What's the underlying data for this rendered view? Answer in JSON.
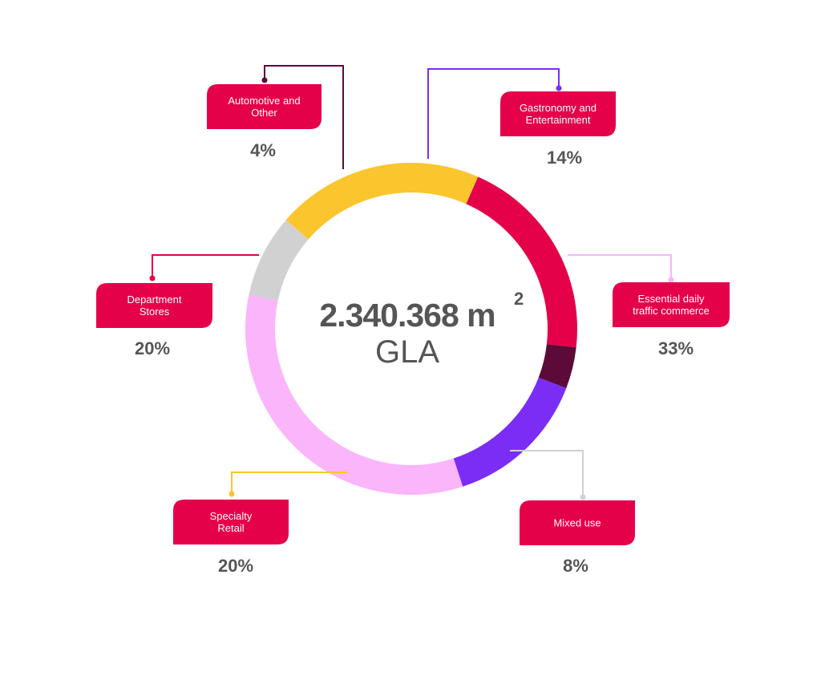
{
  "chart_data": {
    "type": "pie",
    "variant": "donut",
    "center_value": "2.340.368 m",
    "center_superscript": "2",
    "center_label": "GLA",
    "slices": [
      {
        "key": "gastronomy",
        "label_lines": [
          "Gastronomy and",
          "Entertainment"
        ],
        "value": 14,
        "display": "14%",
        "color": "#7b2cf5"
      },
      {
        "key": "essential",
        "label_lines": [
          "Essential daily",
          "traffic commerce"
        ],
        "value": 33,
        "display": "33%",
        "color": "#fab5fb"
      },
      {
        "key": "mixed",
        "label_lines": [
          "Mixed use"
        ],
        "value": 8,
        "display": "8%",
        "color": "#d1d1d1"
      },
      {
        "key": "specialty",
        "label_lines": [
          "Specialty",
          "Retail"
        ],
        "value": 20,
        "display": "20%",
        "color": "#fbc52e"
      },
      {
        "key": "department",
        "label_lines": [
          "Department",
          "Stores"
        ],
        "value": 20,
        "display": "20%",
        "color": "#e5004a"
      },
      {
        "key": "automotive",
        "label_lines": [
          "Automotive and",
          "Other"
        ],
        "value": 4,
        "display": "4%",
        "color": "#5c0b38"
      }
    ]
  },
  "colors": {
    "label_box": "#e5004a",
    "label_text": "#ffffff",
    "percent_text": "#555555",
    "center_text": "#555555"
  }
}
